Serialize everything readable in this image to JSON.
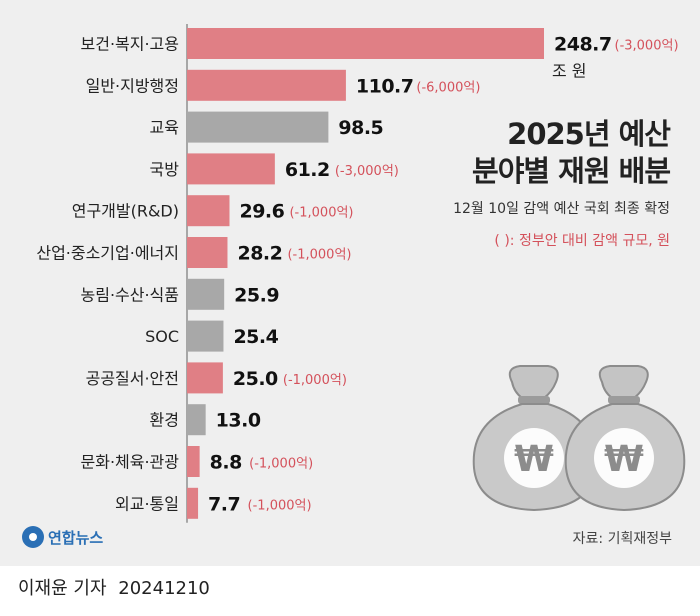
{
  "title_lines": [
    "2025년 예산",
    "분야별 재원 배분"
  ],
  "subtitle": "12월 10일 감액 예산 국회 최종 확정",
  "legend_note": "(    ): 정부안 대비 감액 규모, 원",
  "source": "자료: 기획재정부",
  "logo_text": "연합뉴스",
  "byline": {
    "reporter": "이재윤 기자",
    "date": "20241210"
  },
  "colors": {
    "reduced": "#e07f85",
    "unchanged": "#a8a8a8",
    "reduction_text": "#d4515b",
    "background": "#efefef"
  },
  "chart_data": {
    "type": "bar",
    "orientation": "horizontal",
    "unit_label": "조 원",
    "categories": [
      "보건·복지·고용",
      "일반·지방행정",
      "교육",
      "국방",
      "연구개발(R&D)",
      "산업·중소기업·에너지",
      "농림·수산·식품",
      "SOC",
      "공공질서·안전",
      "환경",
      "문화·체육·관광",
      "외교·통일"
    ],
    "values": [
      248.7,
      110.7,
      98.5,
      61.2,
      29.6,
      28.2,
      25.9,
      25.4,
      25.0,
      13.0,
      8.8,
      7.7
    ],
    "value_labels": [
      "248.7",
      "110.7",
      "98.5",
      "61.2",
      "29.6",
      "28.2",
      "25.9",
      "25.4",
      "25.0",
      "13.0",
      "8.8",
      "7.7"
    ],
    "reductions": [
      "(-3,000억)",
      "(-6,000억)",
      "",
      "(-3,000억)",
      "(-1,000억)",
      "(-1,000억)",
      "",
      "",
      "(-1,000억)",
      "",
      "(-1,000억)",
      "(-1,000억)"
    ],
    "xlim": [
      0,
      248.7
    ]
  }
}
